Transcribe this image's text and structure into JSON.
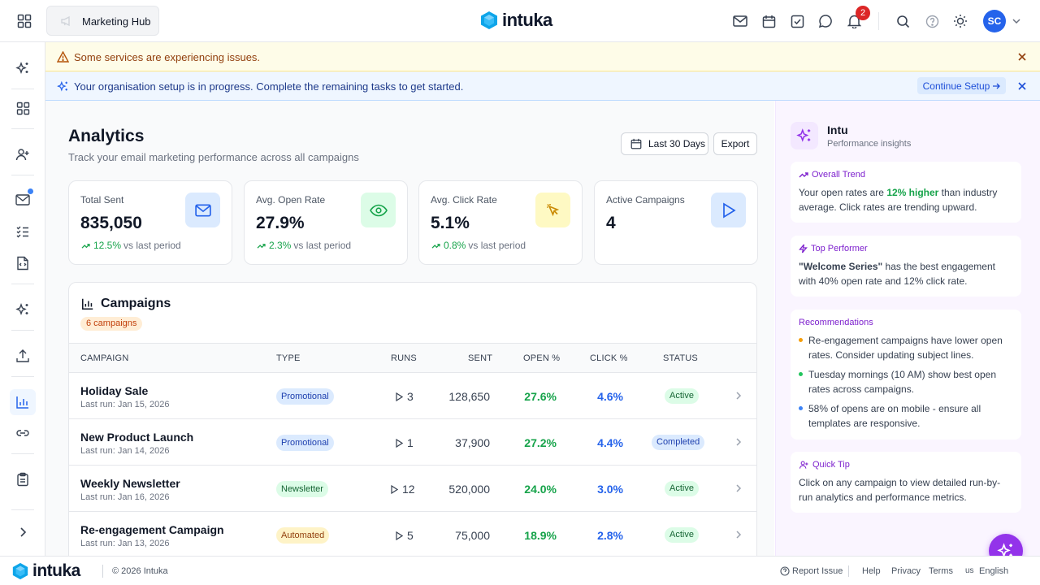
{
  "header": {
    "workspace": "Marketing Hub",
    "brand": "intuka",
    "notification_count": "2",
    "avatar_initials": "SC"
  },
  "alerts": {
    "warning": "Some services are experiencing issues.",
    "info": "Your organisation setup is in progress. Complete the remaining tasks to get started.",
    "continue_label": "Continue Setup"
  },
  "page": {
    "title": "Analytics",
    "subtitle": "Track your email marketing performance across all campaigns",
    "date_range": "Last 30 Days",
    "export_label": "Export"
  },
  "stats": [
    {
      "label": "Total Sent",
      "value": "835,050",
      "trend": "12.5%",
      "suffix": "vs last period",
      "icon": "mail-icon",
      "color": "#2563eb",
      "bg": "#dbeafe"
    },
    {
      "label": "Avg. Open Rate",
      "value": "27.9%",
      "trend": "2.3%",
      "suffix": "vs last period",
      "icon": "eye-icon",
      "color": "#16a34a",
      "bg": "#dcfce7"
    },
    {
      "label": "Avg. Click Rate",
      "value": "5.1%",
      "trend": "0.8%",
      "suffix": "vs last period",
      "icon": "cursor-icon",
      "color": "#ca8a04",
      "bg": "#fef9c3"
    },
    {
      "label": "Active Campaigns",
      "value": "4",
      "icon": "play-icon",
      "color": "#2563eb",
      "bg": "#dbeafe"
    }
  ],
  "campaigns": {
    "title": "Campaigns",
    "count_label": "6 campaigns",
    "columns": [
      "CAMPAIGN",
      "TYPE",
      "RUNS",
      "SENT",
      "OPEN %",
      "CLICK %",
      "STATUS"
    ],
    "rows": [
      {
        "name": "Holiday Sale",
        "last_run": "Last run: Jan 15, 2026",
        "type": "Promotional",
        "runs": "3",
        "sent": "128,650",
        "open": "27.6%",
        "click": "4.6%",
        "status": "Active"
      },
      {
        "name": "New Product Launch",
        "last_run": "Last run: Jan 14, 2026",
        "type": "Promotional",
        "runs": "1",
        "sent": "37,900",
        "open": "27.2%",
        "click": "4.4%",
        "status": "Completed"
      },
      {
        "name": "Weekly Newsletter",
        "last_run": "Last run: Jan 16, 2026",
        "type": "Newsletter",
        "runs": "12",
        "sent": "520,000",
        "open": "24.0%",
        "click": "3.0%",
        "status": "Active"
      },
      {
        "name": "Re-engagement Campaign",
        "last_run": "Last run: Jan 13, 2026",
        "type": "Automated",
        "runs": "5",
        "sent": "75,000",
        "open": "18.9%",
        "click": "2.8%",
        "status": "Active"
      }
    ]
  },
  "insights": {
    "title": "Intu",
    "subtitle": "Performance insights",
    "trend": {
      "heading": "Overall Trend",
      "pre": "Your open rates are ",
      "highlight": "12% higher",
      "post": " than industry average. Click rates are trending upward."
    },
    "top": {
      "heading": "Top Performer",
      "bold": "\"Welcome Series\"",
      "text": " has the best engagement with 40% open rate and 12% click rate."
    },
    "recs": {
      "heading": "Recommendations",
      "items": [
        {
          "text": "Re-engagement campaigns have lower open rates. Consider updating subject lines.",
          "color": "#f59e0b"
        },
        {
          "text": "Tuesday mornings (10 AM) show best open rates across campaigns.",
          "color": "#22c55e"
        },
        {
          "text": "58% of opens are on mobile - ensure all templates are responsive.",
          "color": "#3b82f6"
        }
      ]
    },
    "tip": {
      "heading": "Quick Tip",
      "text": "Click on any campaign to view detailed run-by-run analytics and performance metrics."
    }
  },
  "footer": {
    "brand": "intuka",
    "copyright": "© 2026 Intuka",
    "report": "Report Issue",
    "help": "Help",
    "privacy": "Privacy",
    "terms": "Terms",
    "lang_code": "us",
    "language": "English"
  }
}
